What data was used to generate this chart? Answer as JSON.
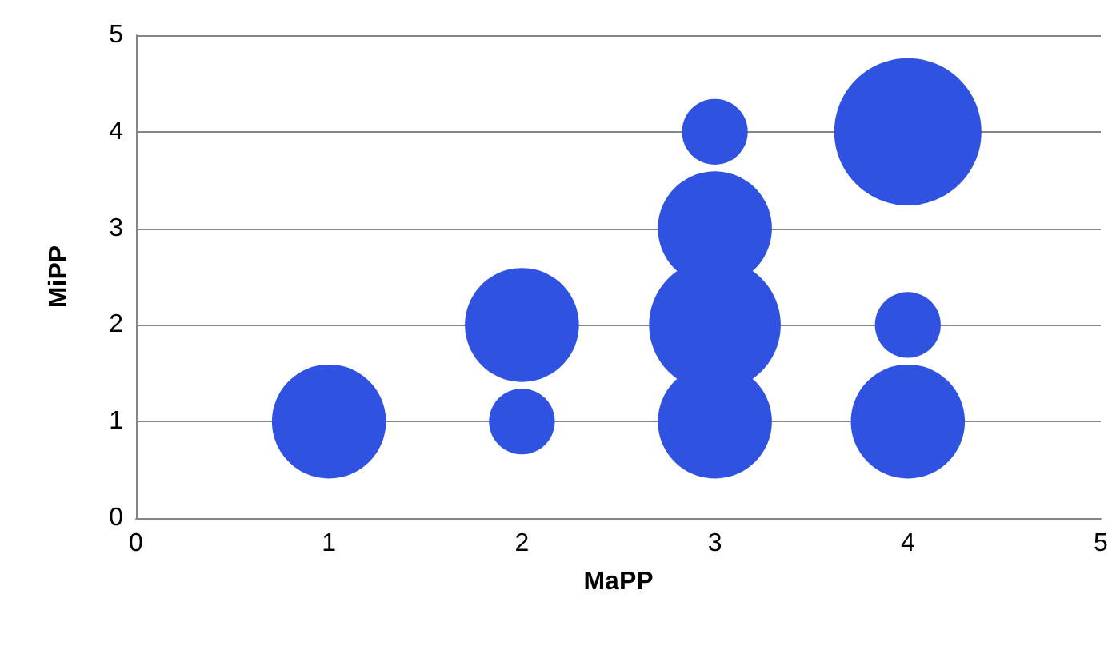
{
  "chart_data": {
    "type": "bubble",
    "xlabel": "MaPP",
    "ylabel": "MiPP",
    "x": [
      1,
      2,
      2,
      3,
      3,
      3,
      3,
      4,
      4,
      4
    ],
    "series": [
      {
        "color": "#2f52e0",
        "values": [
          1,
          1,
          2,
          1,
          2,
          3,
          4,
          1,
          2,
          4
        ],
        "sizes": [
          0.6,
          0.2,
          0.6,
          0.6,
          0.8,
          0.6,
          0.2,
          0.6,
          0.2,
          1
        ]
      }
    ],
    "xlim": [
      0,
      5
    ],
    "xticks": [
      0,
      1,
      2,
      3,
      4,
      5
    ],
    "ylim": [
      0,
      5
    ],
    "yticks": [
      0,
      1,
      2,
      3,
      4,
      5
    ],
    "grid": "y"
  }
}
